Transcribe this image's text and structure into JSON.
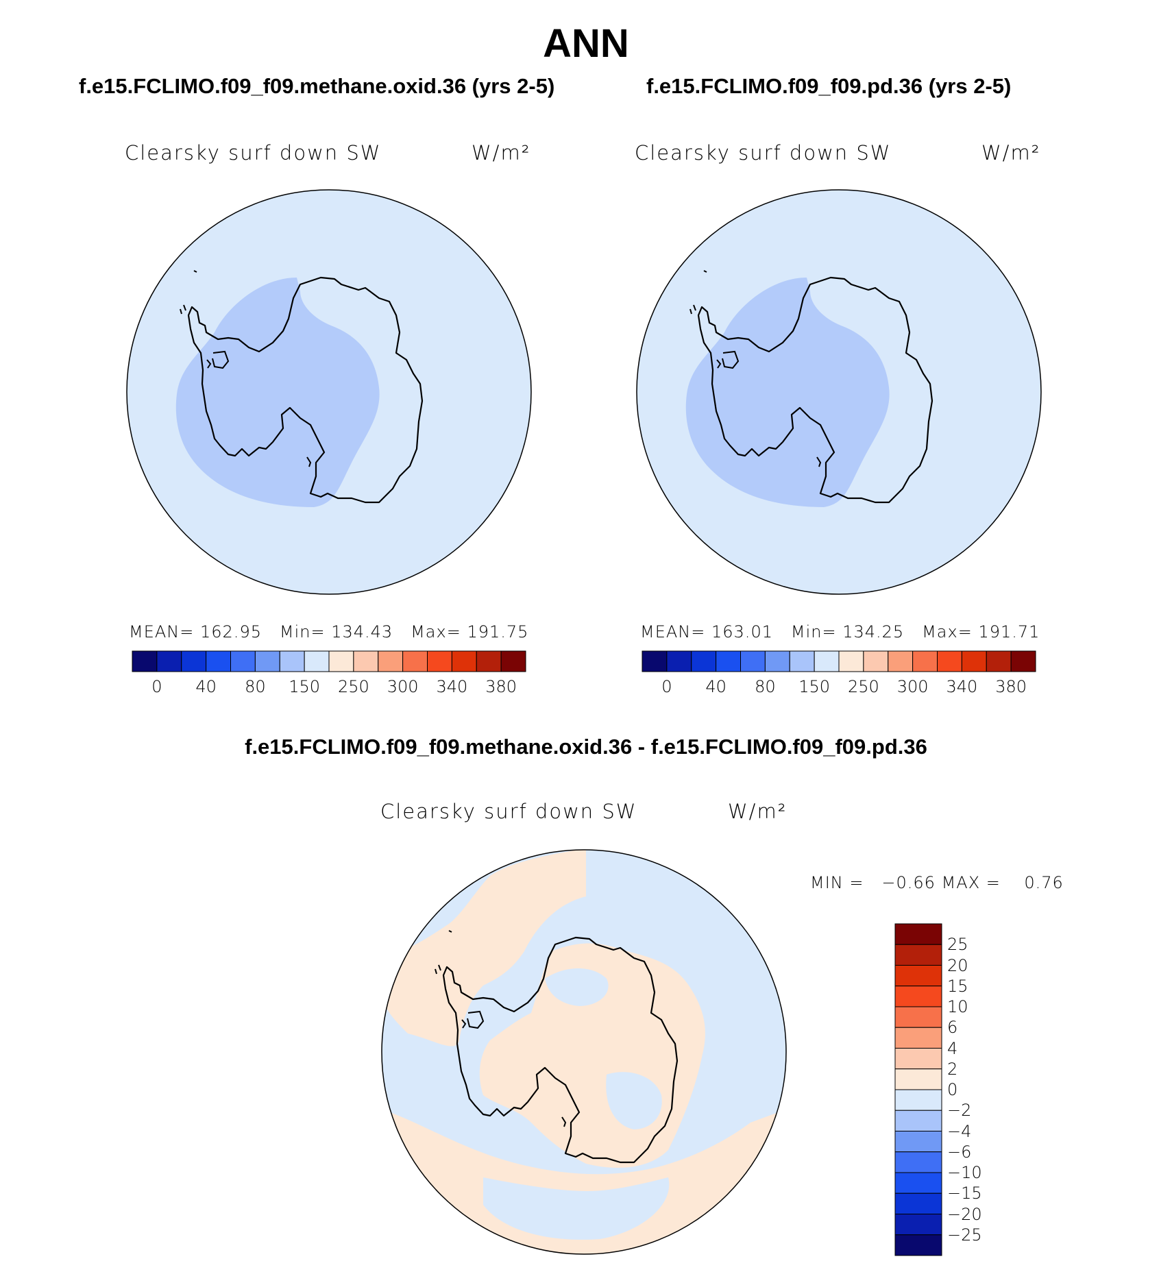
{
  "page_title": "ANN",
  "panels": [
    {
      "case_title": "f.e15.FCLIMO.f09_f09.methane.oxid.36 (yrs 2-5)",
      "variable": "Clearsky surf down SW",
      "units": "W/m²",
      "stats": {
        "mean_label": "MEAN=",
        "mean": "162.95",
        "min_label": "Min=",
        "min": "134.43",
        "max_label": "Max=",
        "max": "191.75"
      }
    },
    {
      "case_title": "f.e15.FCLIMO.f09_f09.pd.36 (yrs 2-5)",
      "variable": "Clearsky surf down SW",
      "units": "W/m²",
      "stats": {
        "mean_label": "MEAN=",
        "mean": "163.01",
        "min_label": "Min=",
        "min": "134.25",
        "max_label": "Max=",
        "max": "191.71"
      }
    }
  ],
  "diff_panel": {
    "case_title": "f.e15.FCLIMO.f09_f09.methane.oxid.36 - f.e15.FCLIMO.f09_f09.pd.36",
    "variable": "Clearsky surf down SW",
    "units": "W/m²",
    "stats": {
      "min_label": "MIN =",
      "min": "−0.66",
      "max_label": "MAX =",
      "max": "0.76"
    }
  },
  "colorbar_main": {
    "colors": [
      "#08086e",
      "#0a1fb0",
      "#0b35d6",
      "#1a50f0",
      "#3f6ff5",
      "#7099f5",
      "#a9c4fa",
      "#d9e9fb",
      "#fce9d8",
      "#fcc9b0",
      "#fa9f7a",
      "#f7714a",
      "#f5491e",
      "#de3208",
      "#b3200a",
      "#7a0404"
    ],
    "labels": [
      "0",
      "40",
      "80",
      "150",
      "250",
      "300",
      "340",
      "380"
    ]
  },
  "colorbar_diff": {
    "colors_top_to_bottom": [
      "#7a0404",
      "#b3200a",
      "#de3208",
      "#f5491e",
      "#f7714a",
      "#fa9f7a",
      "#fcc9b0",
      "#fce9d8",
      "#d9e9fb",
      "#a9c4fa",
      "#7099f5",
      "#3f6ff5",
      "#1a50f0",
      "#0b35d6",
      "#0a1fb0",
      "#08086e"
    ],
    "labels": [
      "25",
      "20",
      "15",
      "10",
      "6",
      "4",
      "2",
      "0",
      "−2",
      "−4",
      "−6",
      "−10",
      "−15",
      "−20",
      "−25"
    ]
  },
  "map_colors": {
    "ocean": "#d9e9fb",
    "low": "#b3cbfa",
    "pos": "#fde8d6",
    "coast": "#000000"
  }
}
